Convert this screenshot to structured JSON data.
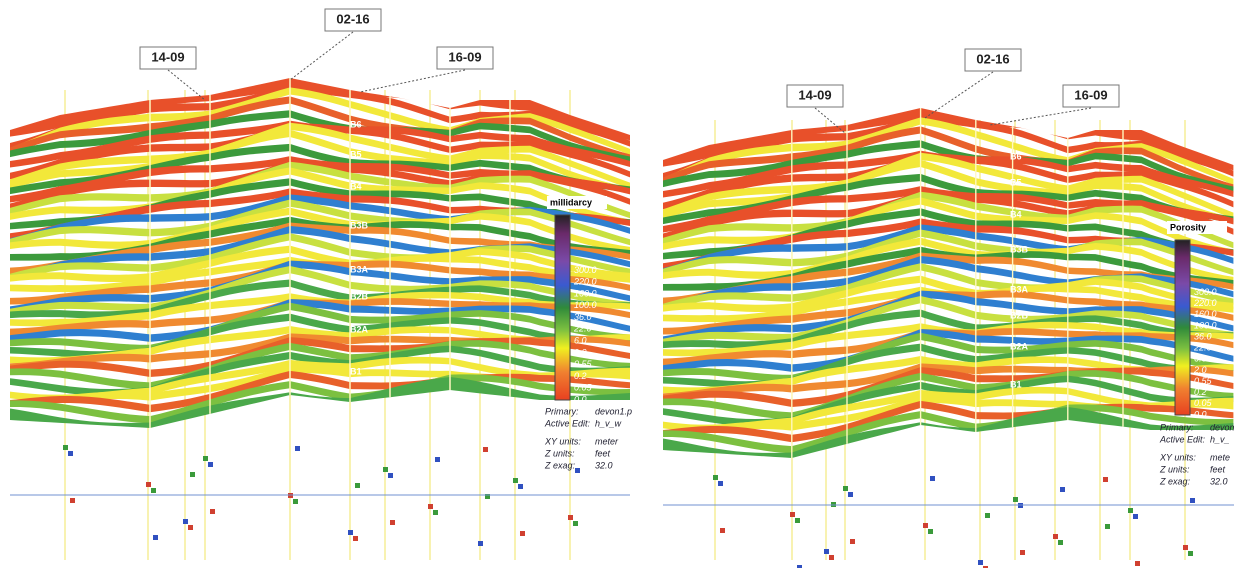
{
  "panels": [
    {
      "wells": [
        "14-09",
        "02-16",
        "16-09"
      ],
      "zones": [
        "B6",
        "B5",
        "B4",
        "B3B",
        "B3A",
        "B2B",
        "B2A",
        "B1"
      ],
      "legend": {
        "title": "millidarcy",
        "values": [
          "300.0",
          "220.0",
          "160.0",
          "100.0",
          "36.0",
          "22.0",
          "6.0",
          "2.0",
          "0.55",
          "0.2",
          "0.05",
          "0.0"
        ]
      },
      "info": [
        {
          "label": "Primary:",
          "value": "devon1.p"
        },
        {
          "label": "Active Edit:",
          "value": "h_v_w"
        },
        {
          "label": "XY units:",
          "value": "meter"
        },
        {
          "label": "Z units:",
          "value": "feet"
        },
        {
          "label": "Z exag:",
          "value": "32.0"
        }
      ]
    },
    {
      "wells": [
        "14-09",
        "02-16",
        "16-09"
      ],
      "zones": [
        "B6",
        "B5",
        "B4",
        "B3B",
        "B3A",
        "B2B",
        "B2A",
        "B1"
      ],
      "legend": {
        "title": "Porosity",
        "values": [
          "300.0",
          "220.0",
          "160.0",
          "100.0",
          "36.0",
          "22.0",
          "6.0",
          "2.0",
          "0.55",
          "0.2",
          "0.05",
          "0.0"
        ]
      },
      "info": [
        {
          "label": "Primary:",
          "value": "devon1."
        },
        {
          "label": "Active Edit:",
          "value": "h_v_"
        },
        {
          "label": "XY units:",
          "value": "mete"
        },
        {
          "label": "Z units:",
          "value": "feet"
        },
        {
          "label": "Z exag:",
          "value": "32.0"
        }
      ]
    }
  ]
}
